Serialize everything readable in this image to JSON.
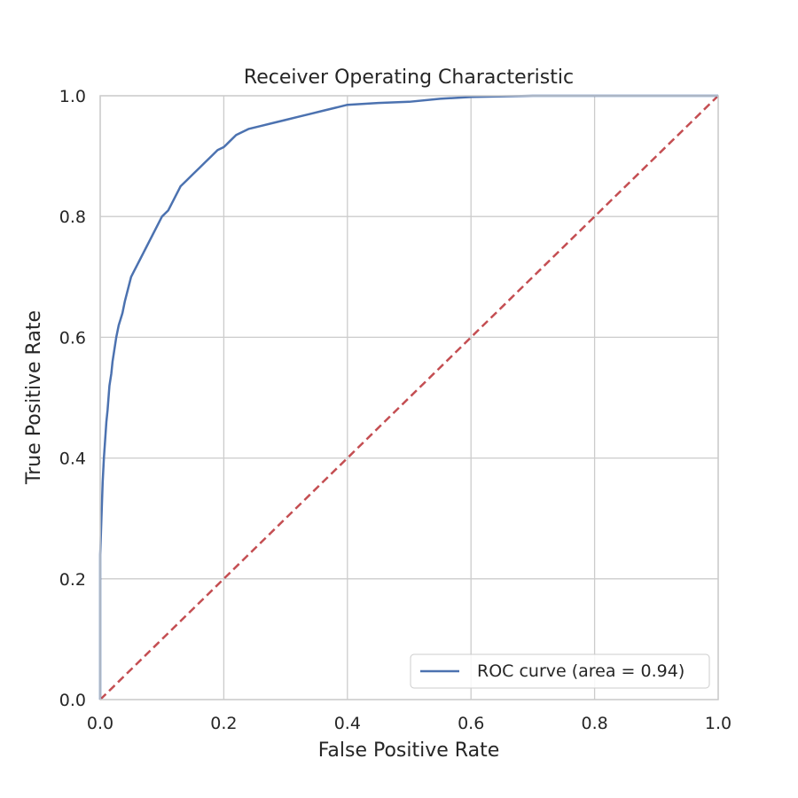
{
  "chart_data": {
    "type": "line",
    "title": "Receiver Operating Characteristic",
    "xlabel": "False Positive Rate",
    "ylabel": "True Positive Rate",
    "xlim": [
      0.0,
      1.0
    ],
    "ylim": [
      0.0,
      1.0
    ],
    "xticks": [
      "0.0",
      "0.2",
      "0.4",
      "0.6",
      "0.8",
      "1.0"
    ],
    "yticks": [
      "0.0",
      "0.2",
      "0.4",
      "0.6",
      "0.8",
      "1.0"
    ],
    "grid": true,
    "legend_position": "lower-right",
    "series": [
      {
        "name": "ROC curve (area = 0.94)",
        "color": "#4c72b0",
        "style": "solid",
        "x": [
          0.0,
          0.0,
          0.002,
          0.004,
          0.006,
          0.008,
          0.01,
          0.012,
          0.015,
          0.018,
          0.02,
          0.023,
          0.026,
          0.03,
          0.033,
          0.036,
          0.04,
          0.045,
          0.05,
          0.055,
          0.06,
          0.065,
          0.07,
          0.075,
          0.08,
          0.085,
          0.09,
          0.1,
          0.11,
          0.12,
          0.13,
          0.14,
          0.15,
          0.16,
          0.17,
          0.18,
          0.19,
          0.2,
          0.21,
          0.22,
          0.24,
          0.26,
          0.28,
          0.3,
          0.32,
          0.34,
          0.36,
          0.38,
          0.4,
          0.45,
          0.5,
          0.55,
          0.6,
          0.7,
          0.8,
          0.9,
          1.0
        ],
        "y": [
          0.0,
          0.24,
          0.3,
          0.36,
          0.4,
          0.43,
          0.46,
          0.48,
          0.52,
          0.54,
          0.56,
          0.58,
          0.6,
          0.62,
          0.63,
          0.64,
          0.66,
          0.68,
          0.7,
          0.71,
          0.72,
          0.73,
          0.74,
          0.75,
          0.76,
          0.77,
          0.78,
          0.8,
          0.81,
          0.83,
          0.85,
          0.86,
          0.87,
          0.88,
          0.89,
          0.9,
          0.91,
          0.915,
          0.925,
          0.935,
          0.945,
          0.95,
          0.955,
          0.96,
          0.965,
          0.97,
          0.975,
          0.98,
          0.985,
          0.988,
          0.99,
          0.995,
          0.998,
          1.0,
          1.0,
          1.0,
          1.0
        ]
      },
      {
        "color": "#c44e52",
        "style": "dashed",
        "x": [
          0.0,
          1.0
        ],
        "y": [
          0.0,
          1.0
        ]
      }
    ]
  }
}
